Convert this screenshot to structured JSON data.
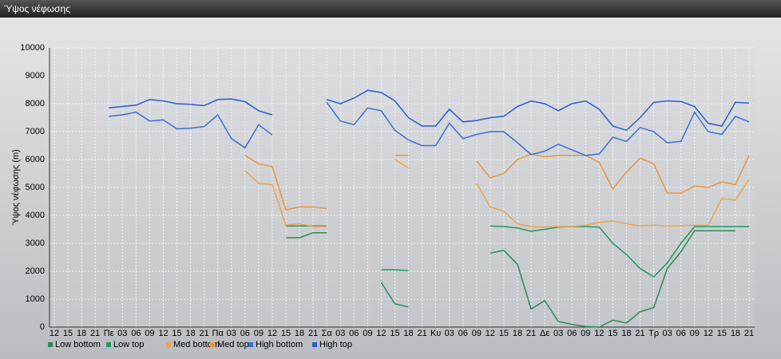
{
  "chart_data": {
    "type": "line",
    "title": "Ύψος νέφωσης",
    "y_label": "Ύψος νέφωσης (m)",
    "categories": [
      "12",
      "15",
      "18",
      "21",
      "Πε",
      "03",
      "06",
      "09",
      "12",
      "15",
      "18",
      "21",
      "Πα",
      "03",
      "06",
      "09",
      "12",
      "15",
      "18",
      "21",
      "Σα",
      "03",
      "06",
      "09",
      "12",
      "15",
      "18",
      "21",
      "Κυ",
      "03",
      "06",
      "09",
      "12",
      "15",
      "18",
      "21",
      "Δε",
      "03",
      "06",
      "09",
      "12",
      "15",
      "18",
      "21",
      "Τρ",
      "03",
      "06",
      "09",
      "12",
      "15",
      "18",
      "21"
    ],
    "ylim": [
      0,
      10000
    ],
    "yticks": [
      0,
      1000,
      2000,
      3000,
      4000,
      5000,
      6000,
      7000,
      8000,
      9000,
      10000
    ],
    "grid": true,
    "series": [
      {
        "name": "Low bottom",
        "color": "#2e8b57",
        "values": [
          null,
          null,
          null,
          null,
          null,
          null,
          null,
          null,
          null,
          null,
          null,
          null,
          null,
          null,
          null,
          null,
          null,
          3200,
          3200,
          3380,
          3380,
          null,
          null,
          null,
          1600,
          830,
          720,
          null,
          null,
          null,
          null,
          null,
          2650,
          2750,
          2250,
          650,
          950,
          200,
          100,
          20,
          0,
          250,
          150,
          550,
          700,
          2100,
          2700,
          3450,
          3450,
          3450,
          3450,
          null
        ]
      },
      {
        "name": "Low top",
        "color": "#1f9a5c",
        "values": [
          null,
          null,
          null,
          null,
          null,
          null,
          null,
          null,
          null,
          null,
          null,
          null,
          null,
          null,
          null,
          null,
          null,
          3620,
          3620,
          3620,
          3620,
          null,
          null,
          null,
          2050,
          2050,
          2020,
          null,
          null,
          null,
          null,
          null,
          3620,
          3600,
          3550,
          3430,
          3500,
          3580,
          3600,
          3600,
          3580,
          3000,
          2600,
          2100,
          1800,
          2300,
          3000,
          3600,
          3600,
          3600,
          3600,
          3600
        ]
      },
      {
        "name": "Med bottom",
        "color": "#f0a24e",
        "values": [
          null,
          null,
          null,
          null,
          null,
          null,
          null,
          null,
          null,
          null,
          null,
          null,
          null,
          null,
          5600,
          5150,
          5100,
          3650,
          3700,
          3600,
          3600,
          null,
          null,
          null,
          null,
          6000,
          5700,
          null,
          null,
          null,
          null,
          5150,
          4300,
          4150,
          3700,
          3600,
          3580,
          3600,
          3600,
          3650,
          3750,
          3800,
          3700,
          3620,
          3650,
          3620,
          3620,
          3650,
          3650,
          4600,
          4550,
          5300
        ]
      },
      {
        "name": "Med top",
        "color": "#e8963c",
        "values": [
          null,
          null,
          null,
          null,
          null,
          null,
          null,
          null,
          null,
          null,
          null,
          null,
          null,
          null,
          6150,
          5850,
          5750,
          4200,
          4300,
          4300,
          4250,
          null,
          null,
          null,
          null,
          6150,
          6150,
          null,
          null,
          null,
          null,
          5950,
          5350,
          5500,
          6000,
          6200,
          6100,
          6150,
          6150,
          6150,
          5900,
          4950,
          5550,
          6050,
          5850,
          4800,
          4800,
          5050,
          5000,
          5200,
          5100,
          6150
        ]
      },
      {
        "name": "High bottom",
        "color": "#3a6fd8",
        "values": [
          null,
          null,
          null,
          null,
          7550,
          7600,
          7700,
          7380,
          7420,
          7100,
          7120,
          7180,
          7600,
          6750,
          6420,
          7250,
          6880,
          null,
          null,
          null,
          8050,
          7380,
          7250,
          7850,
          7750,
          7050,
          6700,
          6500,
          6500,
          7300,
          6750,
          6900,
          7000,
          7000,
          6600,
          6180,
          6300,
          6550,
          6350,
          6150,
          6200,
          6800,
          6650,
          7150,
          7000,
          6600,
          6650,
          7700,
          7000,
          6900,
          7550,
          7350
        ]
      },
      {
        "name": "High top",
        "color": "#2a5cd0",
        "values": [
          null,
          null,
          null,
          null,
          7850,
          7900,
          7950,
          8150,
          8100,
          8000,
          7980,
          7930,
          8150,
          8170,
          8070,
          7750,
          7600,
          null,
          null,
          null,
          8150,
          8000,
          8200,
          8480,
          8400,
          8100,
          7500,
          7200,
          7200,
          7800,
          7350,
          7400,
          7500,
          7550,
          7900,
          8100,
          8000,
          7750,
          8000,
          8100,
          7800,
          7200,
          7050,
          7500,
          8050,
          8100,
          8080,
          7900,
          7300,
          7200,
          8050,
          8020
        ]
      }
    ]
  }
}
